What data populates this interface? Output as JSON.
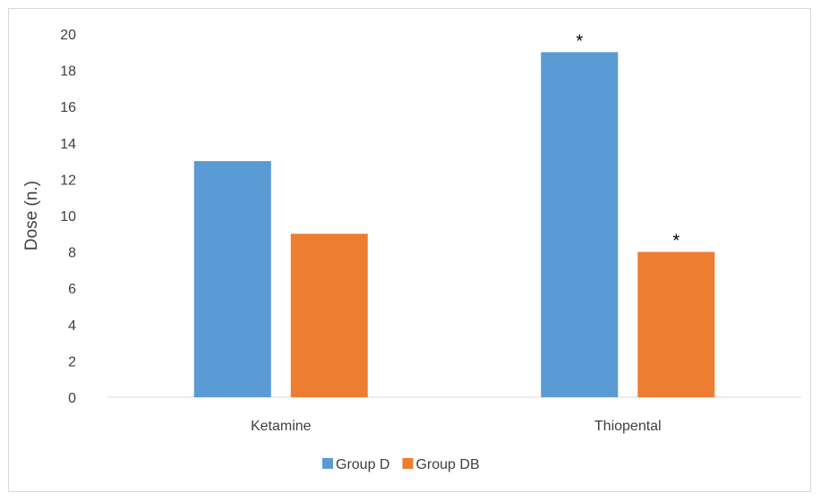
{
  "chart_data": {
    "type": "bar",
    "title": "",
    "xlabel": "",
    "ylabel": "Dose (n.)",
    "ylim": [
      0,
      20
    ],
    "yticks": [
      0,
      2,
      4,
      6,
      8,
      10,
      12,
      14,
      16,
      18,
      20
    ],
    "categories": [
      "Ketamine",
      "Thiopental"
    ],
    "series": [
      {
        "name": "Group D",
        "values": [
          13,
          19
        ],
        "color": "#5b9bd5",
        "annotations": [
          "",
          "*"
        ]
      },
      {
        "name": "Group DB",
        "values": [
          9,
          8
        ],
        "color": "#ed7d31",
        "annotations": [
          "",
          "*"
        ]
      }
    ],
    "grid": false,
    "legend_position": "bottom"
  }
}
